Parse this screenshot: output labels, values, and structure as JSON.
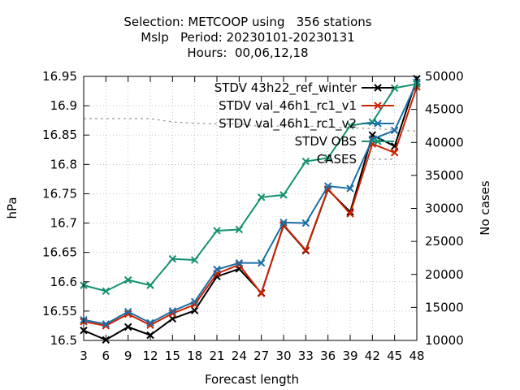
{
  "chart_data": {
    "type": "line",
    "title": [
      "Selection: METCOOP using   356 stations",
      "Mslp   Period: 20230101-20230131",
      "Hours:  00,06,12,18"
    ],
    "xlabel": "Forecast length",
    "ylabel": "hPa",
    "y2label": "No cases",
    "x": [
      3,
      6,
      9,
      12,
      15,
      18,
      21,
      24,
      27,
      30,
      33,
      36,
      39,
      42,
      45,
      48
    ],
    "xticks": [
      "3",
      "6",
      "9",
      "12",
      "15",
      "18",
      "21",
      "24",
      "27",
      "30",
      "33",
      "36",
      "39",
      "42",
      "45",
      "48"
    ],
    "ylim": [
      16.5,
      16.95
    ],
    "yticks": [
      "16.5",
      "16.55",
      "16.6",
      "16.65",
      "16.7",
      "16.75",
      "16.8",
      "16.85",
      "16.9",
      "16.95"
    ],
    "y2lim": [
      10000,
      50000
    ],
    "y2ticks": [
      "10000",
      "15000",
      "20000",
      "25000",
      "30000",
      "35000",
      "40000",
      "45000",
      "50000"
    ],
    "legend_position": "top-right",
    "series": [
      {
        "name": "STDV 43h22_ref_winter",
        "color": "#000000",
        "marker": "x",
        "axis": "y1",
        "values": [
          16.517,
          16.501,
          16.523,
          16.509,
          16.537,
          16.551,
          16.609,
          16.622,
          16.581,
          16.696,
          16.653,
          16.757,
          16.719,
          16.85,
          16.831,
          16.946
        ]
      },
      {
        "name": "STDV val_46h1_rc1_v1",
        "color": "#cc2200",
        "marker": "x",
        "axis": "y1",
        "values": [
          16.532,
          16.525,
          16.545,
          16.526,
          16.546,
          16.561,
          16.614,
          16.629,
          16.58,
          16.697,
          16.654,
          16.758,
          16.716,
          16.835,
          16.82,
          16.932
        ]
      },
      {
        "name": "STDV val_46h1_rc1_v2",
        "color": "#1a6fa6",
        "marker": "x",
        "axis": "y1",
        "values": [
          16.535,
          16.528,
          16.549,
          16.53,
          16.55,
          16.566,
          16.621,
          16.632,
          16.632,
          16.701,
          16.7,
          16.763,
          16.759,
          16.843,
          16.858,
          16.94
        ]
      },
      {
        "name": "STDV OBS",
        "color": "#159070",
        "marker": "x",
        "axis": "y1",
        "values": [
          16.594,
          16.584,
          16.603,
          16.594,
          16.639,
          16.637,
          16.687,
          16.689,
          16.744,
          16.748,
          16.805,
          16.811,
          16.866,
          16.872,
          16.93,
          16.937
        ]
      },
      {
        "name": "CASES",
        "color": "#999999",
        "marker": "none",
        "dashed": true,
        "axis": "y2",
        "values": [
          43600,
          43600,
          43600,
          43600,
          43100,
          42900,
          42800,
          42800,
          42400,
          42500,
          42500,
          42300,
          42200,
          42100,
          41900,
          41700
        ]
      }
    ]
  }
}
